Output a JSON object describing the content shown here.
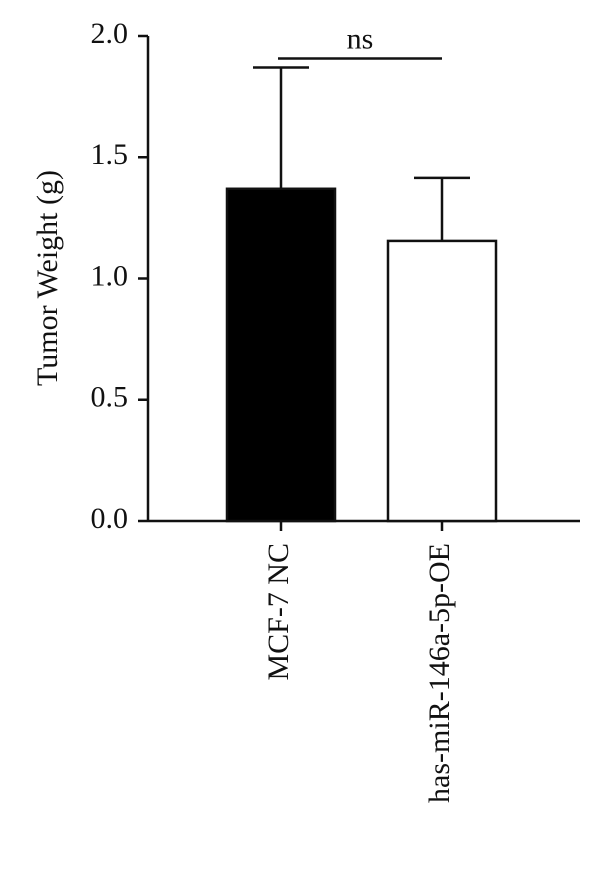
{
  "chart_data": {
    "type": "bar",
    "y_label": "Tumor Weight (g)",
    "categories": [
      "MCF-7 NC",
      "has-miR-146a-5p-OE"
    ],
    "values": [
      1.37,
      1.155
    ],
    "errors": [
      0.5,
      0.26
    ],
    "colors": [
      "#000000",
      "#ffffff"
    ],
    "ylim": [
      0,
      2
    ],
    "yticks": [
      {
        "value": 0,
        "label": "0.0"
      },
      0.5,
      {
        "value": 1,
        "label": "1.0"
      },
      1.5,
      {
        "value": 2,
        "label": "2.0"
      }
    ],
    "annotation": {
      "text": "ns",
      "from": 0,
      "to": 1
    }
  }
}
